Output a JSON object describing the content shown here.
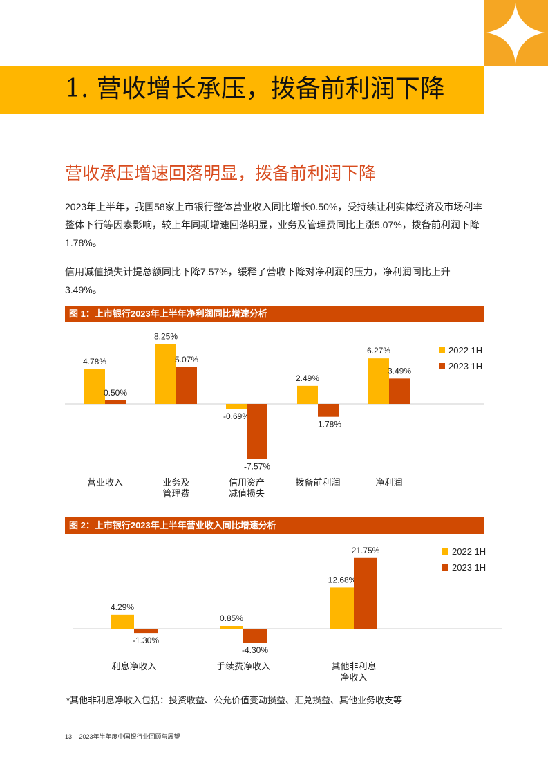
{
  "page": {
    "title": "1. 营收增长承压，拨备前利润下降",
    "subheading": "营收承压增速回落明显，拨备前利润下降",
    "paragraphs": [
      "2023年上半年，我国58家上市银行整体营业收入同比增长0.50%，受持续让利实体经济及市场利率整体下行等因素影响，较上年同期增速回落明显，业务及管理费同比上涨5.07%，拨备前利润下降1.78%。",
      "信用减值损失计提总额同比下降7.57%，缓释了营收下降对净利润的压力，净利润同比上升3.49%。"
    ],
    "footnote": "*其他非利息净收入包括：投资收益、公允价值变动损益、汇兑损益、其他业务收支等",
    "footer": {
      "page_number": "13",
      "text": "2023年半年度中国银行业回顾与展望"
    }
  },
  "colors": {
    "series_2022": "#ffb600",
    "series_2023": "#d04a02",
    "fig_header": "#d04a02",
    "accent": "#f5a623"
  },
  "chart_data": [
    {
      "type": "bar",
      "header": "图 1：上市银行2023年上半年净利润同比增速分析",
      "categories": [
        "营业收入",
        "业务及\n管理费",
        "信用资产\n减值损失",
        "拨备前利润",
        "净利润"
      ],
      "series": [
        {
          "name": "2022 1H",
          "values": [
            4.78,
            8.25,
            -0.69,
            2.49,
            6.27
          ],
          "labels": [
            "4.78%",
            "8.25%",
            "-0.69%",
            "2.49%",
            "6.27%"
          ]
        },
        {
          "name": "2023 1H",
          "values": [
            0.5,
            5.07,
            -7.57,
            -1.78,
            3.49
          ],
          "labels": [
            "0.50%",
            "5.07%",
            "-7.57%",
            "-1.78%",
            "3.49%"
          ]
        }
      ],
      "unit": "%",
      "legend": "right",
      "grid": false
    },
    {
      "type": "bar",
      "header": "图 2：上市银行2023年上半年营业收入同比增速分析",
      "categories": [
        "利息净收入",
        "手续费净收入",
        "其他非利息\n净收入"
      ],
      "series": [
        {
          "name": "2022 1H",
          "values": [
            4.29,
            0.85,
            12.68
          ],
          "labels": [
            "4.29%",
            "0.85%",
            "12.68%"
          ]
        },
        {
          "name": "2023 1H",
          "values": [
            -1.3,
            -4.3,
            21.75
          ],
          "labels": [
            "-1.30%",
            "-4.30%",
            "21.75%"
          ]
        }
      ],
      "unit": "%",
      "legend": "right",
      "grid": false
    }
  ]
}
